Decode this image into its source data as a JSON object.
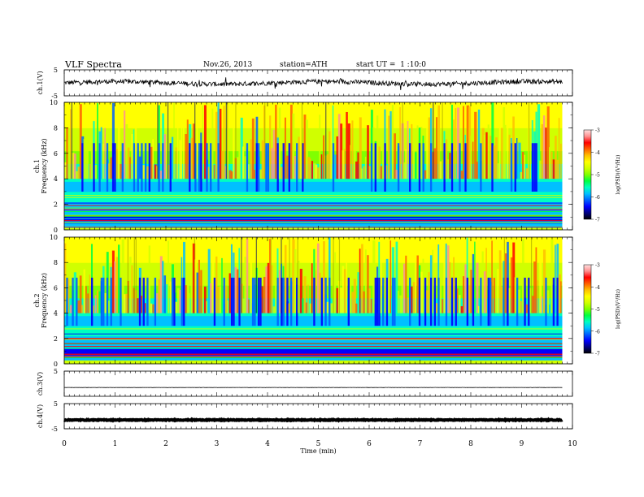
{
  "header": {
    "title": "VLF Spectra",
    "date": "Nov.26, 2013",
    "station": "station=ATH",
    "start_ut": "start UT =  1 :10:0"
  },
  "chart_data": {
    "type": "spectrogram",
    "xlabel": "Time (min)",
    "xlim": [
      0,
      10
    ],
    "x_ticks": [
      "0",
      "1",
      "2",
      "3",
      "4",
      "5",
      "6",
      "7",
      "8",
      "9",
      "10"
    ],
    "data_end_min": 9.8,
    "panels": [
      {
        "ylabel": "ch.1(V)",
        "kind": "waveform",
        "ylim": [
          -5,
          5
        ],
        "y_ticks": [
          "5",
          "-5"
        ],
        "baseline": 0,
        "noise": "high"
      },
      {
        "ylabel_top": "ch.1",
        "ylabel": "Frequency (kHz)",
        "kind": "spectrogram",
        "ylim": [
          0,
          10
        ],
        "y_ticks": [
          "0",
          "2",
          "4",
          "6",
          "8",
          "10"
        ],
        "colorbar": {
          "label": "log(PSD)(V²/Hz)",
          "range": [
            -7,
            -3
          ],
          "ticks": [
            "-3",
            "-4",
            "-5",
            "-6",
            "-7"
          ]
        }
      },
      {
        "ylabel_top": "ch.2",
        "ylabel": "Frequency (kHz)",
        "kind": "spectrogram",
        "ylim": [
          0,
          10
        ],
        "y_ticks": [
          "0",
          "2",
          "4",
          "6",
          "8",
          "10"
        ],
        "colorbar": {
          "label": "log(PSD)(V²/Hz)",
          "range": [
            -7,
            -3
          ],
          "ticks": [
            "-3",
            "-4",
            "-5",
            "-6",
            "-7"
          ]
        }
      },
      {
        "ylabel": "ch.3(V)",
        "kind": "waveform",
        "ylim": [
          -5,
          5
        ],
        "y_ticks": [
          "5"
        ],
        "baseline": -1.5,
        "noise": "low"
      },
      {
        "ylabel": "ch.4(V)",
        "kind": "waveform",
        "ylim": [
          -5,
          5
        ],
        "y_ticks": [
          "5",
          "-5"
        ],
        "baseline": -1.5,
        "noise": "thick"
      }
    ],
    "colormap": [
      "#000000",
      "#000080",
      "#0000ff",
      "#0060ff",
      "#00c0ff",
      "#00ffc0",
      "#00ff40",
      "#80ff00",
      "#d0ff00",
      "#ffff00",
      "#ffc000",
      "#ff6000",
      "#ff0000",
      "#ff9090",
      "#ffe0e0"
    ]
  }
}
